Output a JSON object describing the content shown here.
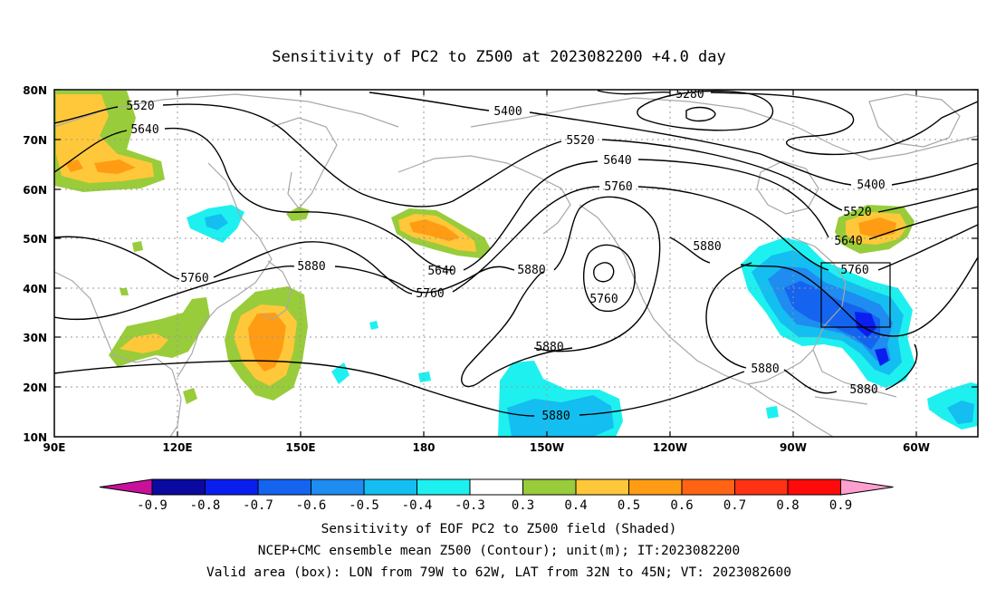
{
  "title": "Sensitivity of PC2 to Z500 at 2023082200 +4.0 day",
  "map": {
    "lat_labels": [
      "80N",
      "70N",
      "60N",
      "50N",
      "40N",
      "30N",
      "20N",
      "10N"
    ],
    "lon_labels": [
      "90E",
      "120E",
      "150E",
      "180",
      "150W",
      "120W",
      "90W",
      "60W"
    ]
  },
  "contour_labels": [
    "5280",
    "5400",
    "5400",
    "5520",
    "5520",
    "5520",
    "5640",
    "5640",
    "5640",
    "5640",
    "5760",
    "5760",
    "5760",
    "5760",
    "5760",
    "5880",
    "5880",
    "5880",
    "5880",
    "5880",
    "5880",
    "5880"
  ],
  "valid_box": {
    "lon_from": "79W",
    "lon_to": "62W",
    "lat_from": "32N",
    "lat_to": "45N"
  },
  "colorbar": {
    "labels": [
      "-0.9",
      "-0.8",
      "-0.7",
      "-0.6",
      "-0.5",
      "-0.4",
      "-0.3",
      "0.3",
      "0.4",
      "0.5",
      "0.6",
      "0.7",
      "0.8",
      "0.9"
    ],
    "colors": {
      "low_end": "#c8109c",
      "high_end": "#ff9fd0",
      "bins": [
        "#0a0aa0",
        "#0a1ef0",
        "#1464f0",
        "#1e8cf0",
        "#14bef0",
        "#1ef0f0",
        "#ffffff",
        "#98cc3a",
        "#ffc83a",
        "#ff9c14",
        "#ff6414",
        "#ff3214",
        "#ff0a0a"
      ]
    }
  },
  "caption": [
    "Sensitivity of EOF PC2 to Z500 field (Shaded)",
    "NCEP+CMC ensemble mean Z500 (Contour); unit(m); IT:2023082200",
    "Valid area (box): LON from 79W to 62W, LAT from 32N to 45N; VT: 2023082600"
  ]
}
